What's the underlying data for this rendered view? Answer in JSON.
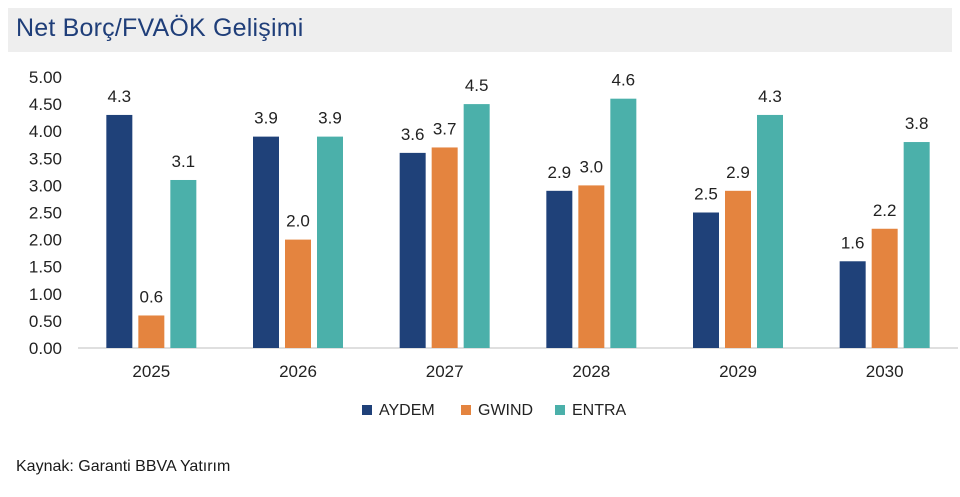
{
  "title": "Net Borç/FVAÖK Gelişimi",
  "source": "Kaynak: Garanti BBVA Yatırım",
  "chart_data": {
    "type": "bar",
    "title": "Net Borç/FVAÖK Gelişimi",
    "categories": [
      "2025",
      "2026",
      "2027",
      "2028",
      "2029",
      "2030"
    ],
    "series": [
      {
        "name": "AYDEM",
        "color": "#1f4179",
        "values": [
          4.3,
          3.9,
          3.6,
          2.9,
          2.5,
          1.6
        ],
        "labels": [
          "4.3",
          "3.9",
          "3.6",
          "2.9",
          "2.5",
          "1.6"
        ]
      },
      {
        "name": "GWIND",
        "color": "#e4843f",
        "values": [
          0.6,
          2.0,
          3.7,
          3.0,
          2.9,
          2.2
        ],
        "labels": [
          "0.6",
          "2.0",
          "3.7",
          "3.0",
          "2.9",
          "2.2"
        ]
      },
      {
        "name": "ENTRA",
        "color": "#4bb0aa",
        "values": [
          3.1,
          3.9,
          4.5,
          4.6,
          4.3,
          3.8
        ],
        "labels": [
          "3.1",
          "3.9",
          "4.5",
          "4.6",
          "4.3",
          "3.8"
        ]
      }
    ],
    "ylim": [
      0,
      5
    ],
    "yticks": [
      "0.00",
      "0.50",
      "1.00",
      "1.50",
      "2.00",
      "2.50",
      "3.00",
      "3.50",
      "4.00",
      "4.50",
      "5.00"
    ],
    "xlabel": "",
    "ylabel": "",
    "grid": false,
    "legend": "bottom"
  }
}
